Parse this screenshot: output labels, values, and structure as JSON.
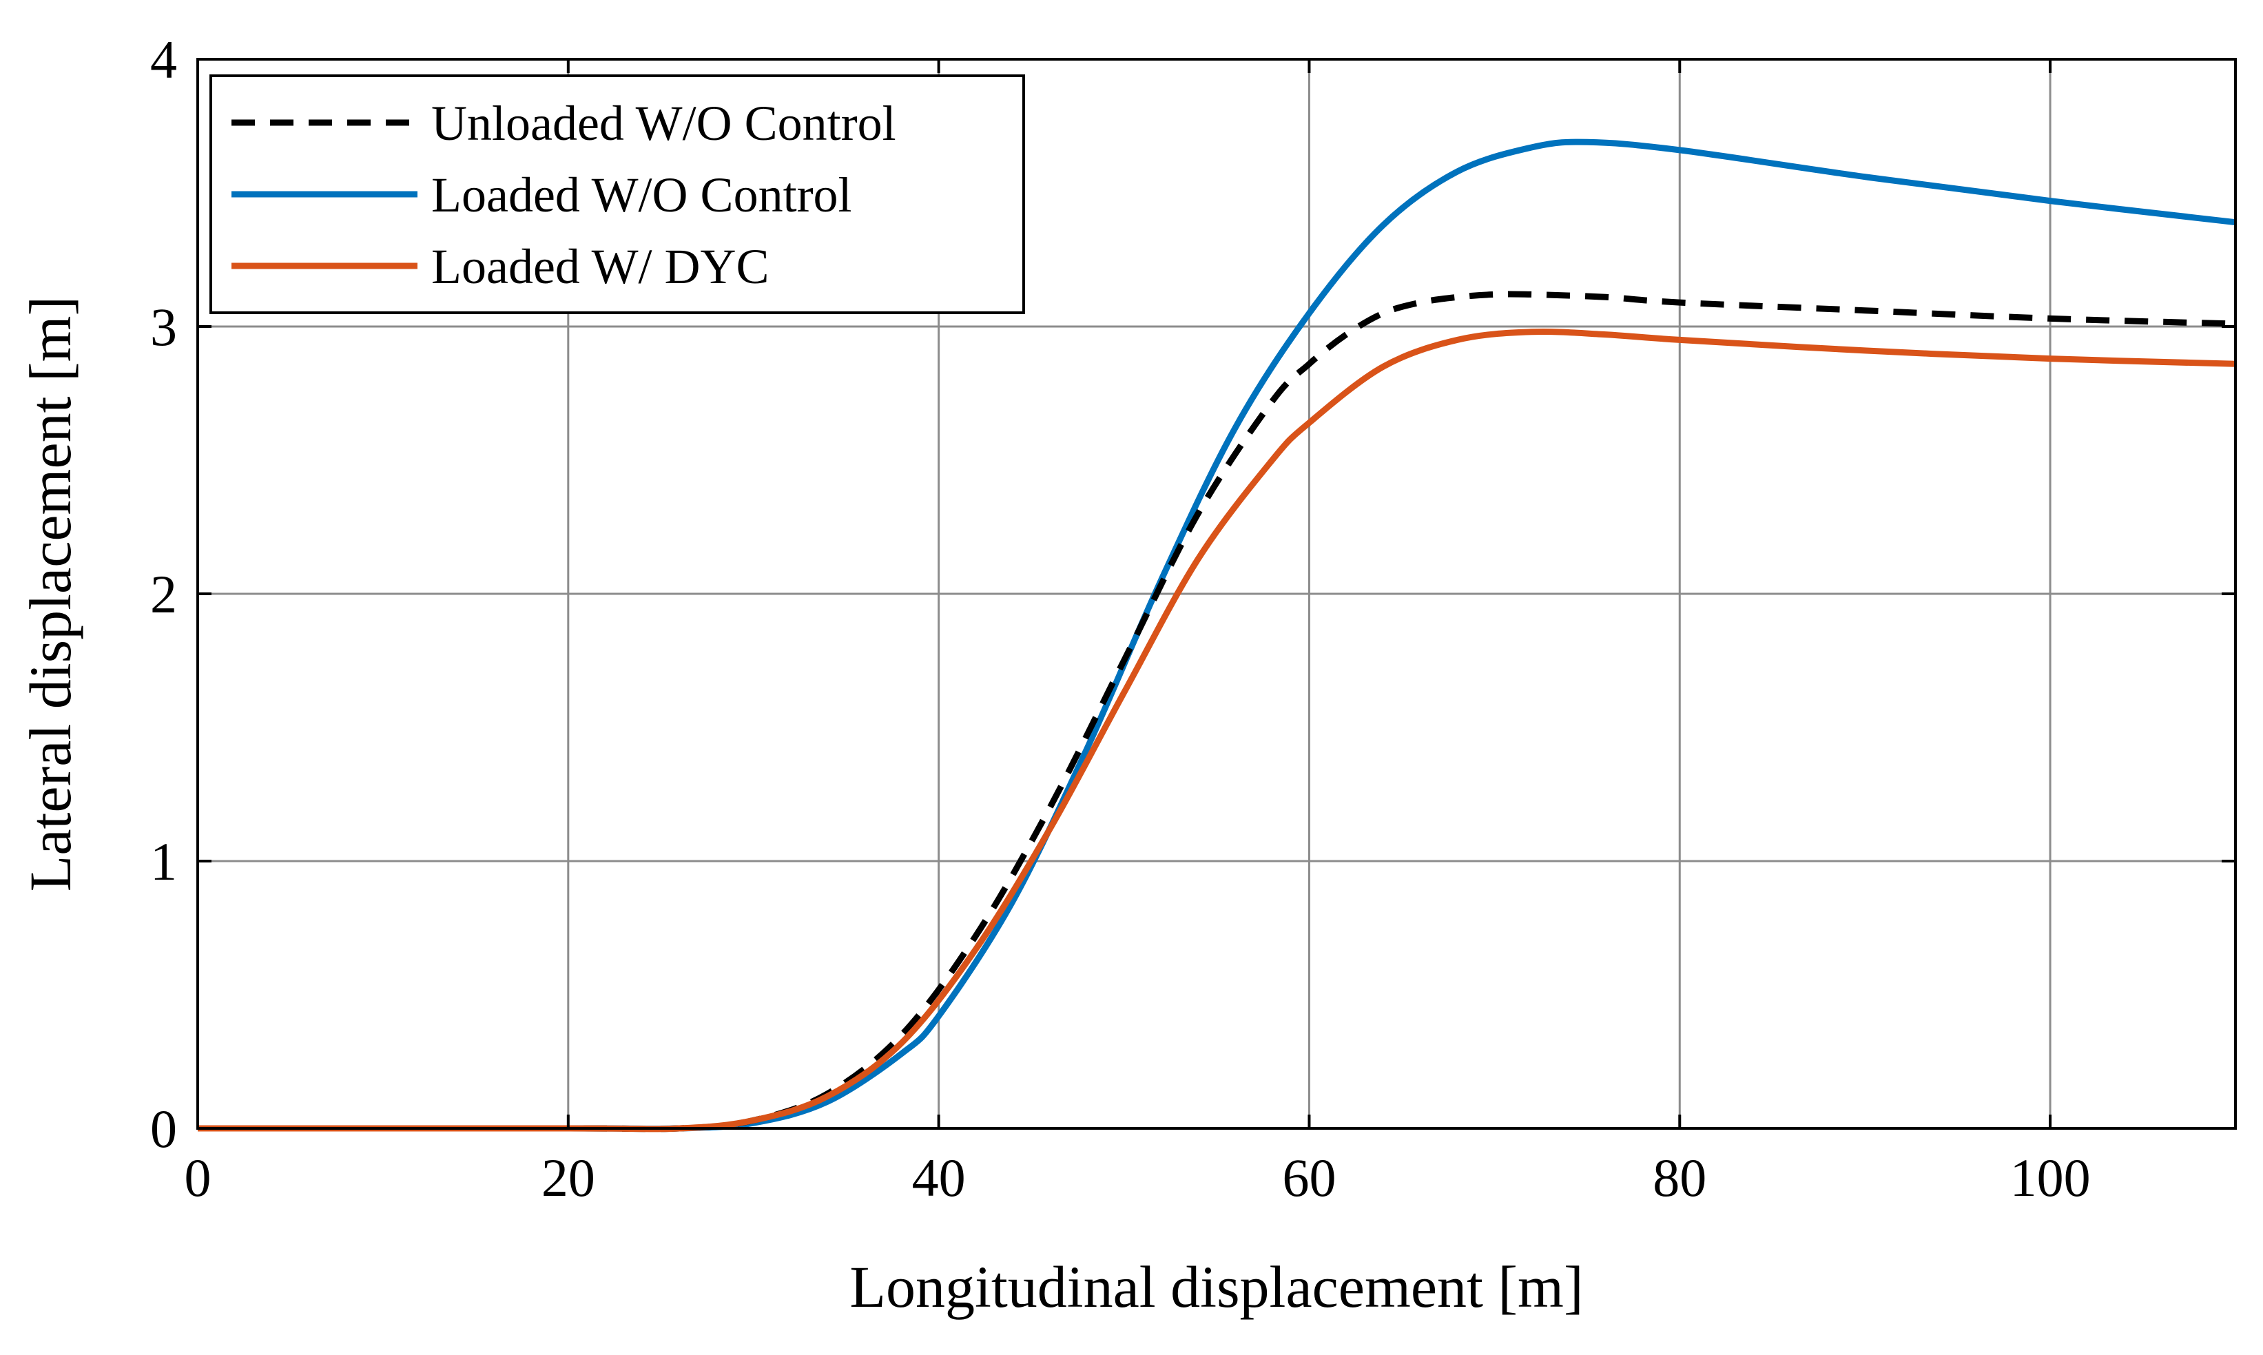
{
  "chart_data": {
    "type": "line",
    "title": "",
    "xlabel": "Longitudinal displacement [m]",
    "ylabel": "Lateral displacement [m]",
    "xlim": [
      0,
      110
    ],
    "ylim": [
      0,
      4
    ],
    "xticks": [
      0,
      20,
      40,
      60,
      80,
      100
    ],
    "yticks": [
      0,
      1,
      2,
      3,
      4
    ],
    "xtick_labels": [
      "0",
      "20",
      "40",
      "60",
      "80",
      "100"
    ],
    "ytick_labels": [
      "0",
      "1",
      "2",
      "3",
      "4"
    ],
    "grid": true,
    "legend_position": "top-left",
    "series": [
      {
        "name": "Unloaded W/O Control",
        "color": "#000000",
        "style": "dashed",
        "x": [
          0,
          20,
          26,
          30,
          34,
          38,
          42,
          46,
          50,
          54,
          58,
          60,
          62,
          64,
          66,
          68,
          70,
          72,
          76,
          80,
          90,
          100,
          110
        ],
        "y": [
          0,
          0,
          0,
          0.03,
          0.13,
          0.35,
          0.72,
          1.2,
          1.75,
          2.3,
          2.72,
          2.86,
          2.97,
          3.05,
          3.09,
          3.11,
          3.12,
          3.12,
          3.11,
          3.09,
          3.06,
          3.03,
          3.01
        ]
      },
      {
        "name": "Loaded W/O Control",
        "color": "#0072BD",
        "style": "solid",
        "x": [
          0,
          20,
          26,
          30,
          34,
          38,
          40,
          44,
          48,
          52,
          56,
          60,
          64,
          68,
          72,
          75,
          80,
          90,
          100,
          110
        ],
        "y": [
          0,
          0,
          0,
          0.02,
          0.1,
          0.28,
          0.42,
          0.85,
          1.42,
          2.05,
          2.62,
          3.05,
          3.38,
          3.58,
          3.67,
          3.69,
          3.66,
          3.56,
          3.47,
          3.39
        ]
      },
      {
        "name": "Loaded W/ DYC",
        "color": "#D95319",
        "style": "solid",
        "x": [
          0,
          20,
          26,
          30,
          34,
          38,
          42,
          46,
          50,
          54,
          58,
          60,
          64,
          68,
          72,
          76,
          80,
          90,
          100,
          110
        ],
        "y": [
          0,
          0,
          0,
          0.03,
          0.12,
          0.32,
          0.67,
          1.12,
          1.63,
          2.13,
          2.5,
          2.64,
          2.85,
          2.95,
          2.98,
          2.97,
          2.95,
          2.91,
          2.88,
          2.86
        ]
      }
    ]
  }
}
